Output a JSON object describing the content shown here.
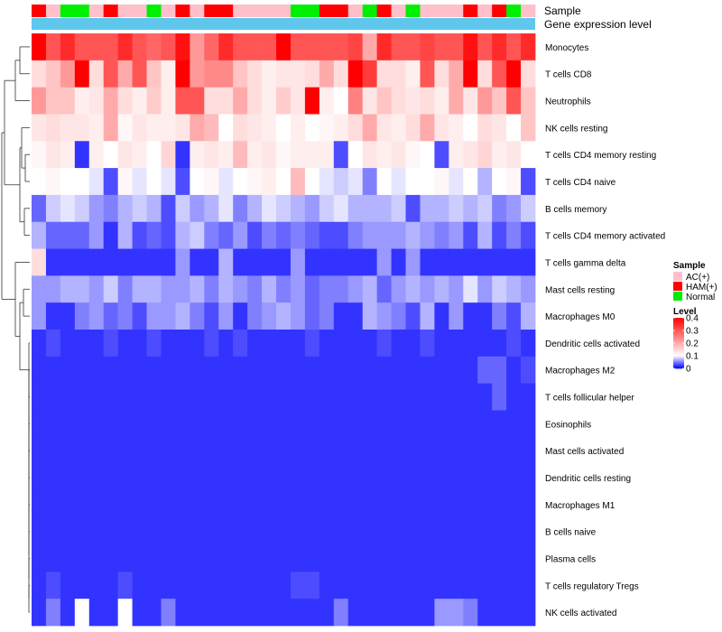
{
  "chart_data": {
    "type": "heatmap",
    "annotation_tracks": [
      "Sample",
      "Gene expression level"
    ],
    "sample_groups": [
      "AC(+)",
      "HAM(+)",
      "Normal"
    ],
    "sample_group_colors": {
      "AC(+)": "#ffc0cb",
      "HAM(+)": "#ff0000",
      "Normal": "#00ee00"
    },
    "sample_annotation": [
      "HAM(+)",
      "AC(+)",
      "Normal",
      "Normal",
      "AC(+)",
      "HAM(+)",
      "AC(+)",
      "AC(+)",
      "Normal",
      "AC(+)",
      "HAM(+)",
      "AC(+)",
      "HAM(+)",
      "HAM(+)",
      "AC(+)",
      "AC(+)",
      "AC(+)",
      "AC(+)",
      "Normal",
      "Normal",
      "HAM(+)",
      "HAM(+)",
      "AC(+)",
      "Normal",
      "HAM(+)",
      "AC(+)",
      "Normal",
      "AC(+)",
      "AC(+)",
      "AC(+)",
      "HAM(+)",
      "AC(+)",
      "HAM(+)",
      "Normal",
      "AC(+)"
    ],
    "gene_expression_level_color": "#5fc6ec",
    "rows": [
      "Monocytes",
      "T cells CD8",
      "Neutrophils",
      "NK cells resting",
      "T cells CD4 memory resting",
      "T cells CD4 naive",
      "B cells memory",
      "T cells CD4 memory activated",
      "T cells gamma delta",
      "Mast cells resting",
      "Macrophages M0",
      "Dendritic cells activated",
      "Macrophages M2",
      "T cells follicular helper",
      "Eosinophils",
      "Mast cells activated",
      "Dendritic cells resting",
      "Macrophages M1",
      "B cells naive",
      "Plasma cells",
      "T cells regulatory  Tregs",
      "NK cells activated"
    ],
    "values": [
      [
        0.4,
        0.3,
        0.35,
        0.3,
        0.3,
        0.3,
        0.35,
        0.3,
        0.28,
        0.3,
        0.38,
        0.22,
        0.28,
        0.35,
        0.3,
        0.3,
        0.3,
        0.4,
        0.3,
        0.3,
        0.3,
        0.3,
        0.32,
        0.2,
        0.35,
        0.3,
        0.3,
        0.32,
        0.3,
        0.3,
        0.38,
        0.3,
        0.35,
        0.3,
        0.35
      ],
      [
        0.14,
        0.17,
        0.22,
        0.4,
        0.14,
        0.3,
        0.2,
        0.3,
        0.17,
        0.12,
        0.4,
        0.22,
        0.24,
        0.24,
        0.17,
        0.14,
        0.12,
        0.13,
        0.13,
        0.14,
        0.2,
        0.14,
        0.4,
        0.33,
        0.14,
        0.14,
        0.12,
        0.3,
        0.14,
        0.2,
        0.4,
        0.14,
        0.3,
        0.4,
        0.14
      ],
      [
        0.22,
        0.17,
        0.17,
        0.12,
        0.13,
        0.2,
        0.14,
        0.12,
        0.16,
        0.12,
        0.3,
        0.3,
        0.14,
        0.14,
        0.2,
        0.14,
        0.12,
        0.16,
        0.13,
        0.4,
        0.12,
        0.1,
        0.25,
        0.13,
        0.17,
        0.14,
        0.13,
        0.14,
        0.12,
        0.2,
        0.13,
        0.22,
        0.17,
        0.3,
        0.17
      ],
      [
        0.13,
        0.14,
        0.13,
        0.13,
        0.12,
        0.2,
        0.11,
        0.13,
        0.12,
        0.12,
        0.13,
        0.2,
        0.18,
        0.1,
        0.14,
        0.13,
        0.12,
        0.1,
        0.12,
        0.1,
        0.11,
        0.12,
        0.14,
        0.2,
        0.13,
        0.12,
        0.14,
        0.2,
        0.13,
        0.12,
        0.1,
        0.14,
        0.13,
        0.1,
        0.17
      ],
      [
        0.11,
        0.13,
        0.12,
        0.02,
        0.12,
        0.1,
        0.13,
        0.12,
        0.1,
        0.15,
        0.02,
        0.12,
        0.13,
        0.12,
        0.18,
        0.12,
        0.13,
        0.11,
        0.12,
        0.12,
        0.12,
        0.03,
        0.1,
        0.13,
        0.12,
        0.13,
        0.11,
        0.1,
        0.03,
        0.12,
        0.13,
        0.15,
        0.12,
        0.13,
        0.1
      ],
      [
        0.1,
        0.11,
        0.1,
        0.1,
        0.09,
        0.03,
        0.11,
        0.09,
        0.1,
        0.09,
        0.03,
        0.1,
        0.11,
        0.09,
        0.1,
        0.11,
        0.12,
        0.1,
        0.18,
        0.1,
        0.09,
        0.08,
        0.09,
        0.05,
        0.1,
        0.09,
        0.1,
        0.1,
        0.11,
        0.09,
        0.1,
        0.07,
        0.1,
        0.11,
        0.03
      ],
      [
        0.04,
        0.08,
        0.09,
        0.08,
        0.06,
        0.05,
        0.07,
        0.08,
        0.07,
        0.03,
        0.08,
        0.06,
        0.07,
        0.09,
        0.05,
        0.07,
        0.09,
        0.08,
        0.07,
        0.06,
        0.08,
        0.09,
        0.07,
        0.07,
        0.07,
        0.08,
        0.03,
        0.07,
        0.07,
        0.08,
        0.07,
        0.08,
        0.05,
        0.06,
        0.08
      ],
      [
        0.07,
        0.04,
        0.04,
        0.04,
        0.06,
        0.02,
        0.07,
        0.03,
        0.04,
        0.03,
        0.07,
        0.08,
        0.05,
        0.04,
        0.06,
        0.03,
        0.05,
        0.04,
        0.05,
        0.04,
        0.03,
        0.03,
        0.05,
        0.06,
        0.06,
        0.06,
        0.07,
        0.06,
        0.05,
        0.06,
        0.03,
        0.07,
        0.03,
        0.05,
        0.03
      ],
      [
        0.14,
        0.02,
        0.02,
        0.02,
        0.02,
        0.02,
        0.02,
        0.02,
        0.02,
        0.02,
        0.06,
        0.02,
        0.02,
        0.07,
        0.02,
        0.02,
        0.02,
        0.02,
        0.06,
        0.02,
        0.02,
        0.02,
        0.02,
        0.02,
        0.06,
        0.02,
        0.06,
        0.02,
        0.02,
        0.02,
        0.02,
        0.02,
        0.02,
        0.02,
        0.02
      ],
      [
        0.06,
        0.06,
        0.07,
        0.07,
        0.06,
        0.08,
        0.05,
        0.07,
        0.07,
        0.06,
        0.06,
        0.07,
        0.05,
        0.07,
        0.06,
        0.05,
        0.07,
        0.05,
        0.06,
        0.04,
        0.05,
        0.05,
        0.06,
        0.07,
        0.04,
        0.06,
        0.07,
        0.06,
        0.07,
        0.06,
        0.09,
        0.06,
        0.08,
        0.07,
        0.06
      ],
      [
        0.06,
        0.02,
        0.02,
        0.05,
        0.06,
        0.04,
        0.05,
        0.03,
        0.06,
        0.06,
        0.07,
        0.05,
        0.03,
        0.06,
        0.02,
        0.05,
        0.06,
        0.07,
        0.06,
        0.04,
        0.05,
        0.02,
        0.02,
        0.07,
        0.06,
        0.05,
        0.03,
        0.07,
        0.02,
        0.06,
        0.02,
        0.02,
        0.05,
        0.03,
        0.07
      ],
      [
        0.02,
        0.03,
        0.02,
        0.02,
        0.02,
        0.03,
        0.02,
        0.02,
        0.03,
        0.02,
        0.02,
        0.02,
        0.03,
        0.02,
        0.03,
        0.02,
        0.02,
        0.02,
        0.02,
        0.03,
        0.02,
        0.02,
        0.02,
        0.02,
        0.03,
        0.02,
        0.02,
        0.03,
        0.02,
        0.02,
        0.02,
        0.02,
        0.02,
        0.03,
        0.02
      ],
      [
        0.02,
        0.02,
        0.02,
        0.02,
        0.02,
        0.02,
        0.02,
        0.02,
        0.02,
        0.02,
        0.02,
        0.02,
        0.02,
        0.02,
        0.02,
        0.02,
        0.02,
        0.02,
        0.02,
        0.02,
        0.02,
        0.02,
        0.02,
        0.02,
        0.02,
        0.02,
        0.02,
        0.02,
        0.02,
        0.02,
        0.02,
        0.04,
        0.04,
        0.02,
        0.03
      ],
      [
        0.02,
        0.02,
        0.02,
        0.02,
        0.02,
        0.02,
        0.02,
        0.02,
        0.02,
        0.02,
        0.02,
        0.02,
        0.02,
        0.02,
        0.02,
        0.02,
        0.02,
        0.02,
        0.02,
        0.02,
        0.02,
        0.02,
        0.02,
        0.02,
        0.02,
        0.02,
        0.02,
        0.02,
        0.02,
        0.02,
        0.02,
        0.02,
        0.04,
        0.02,
        0.02
      ],
      [
        0.02,
        0.02,
        0.02,
        0.02,
        0.02,
        0.02,
        0.02,
        0.02,
        0.02,
        0.02,
        0.02,
        0.02,
        0.02,
        0.02,
        0.02,
        0.02,
        0.02,
        0.02,
        0.02,
        0.02,
        0.02,
        0.02,
        0.02,
        0.02,
        0.02,
        0.02,
        0.02,
        0.02,
        0.02,
        0.02,
        0.02,
        0.02,
        0.02,
        0.02,
        0.02
      ],
      [
        0.02,
        0.02,
        0.02,
        0.02,
        0.02,
        0.02,
        0.02,
        0.02,
        0.02,
        0.02,
        0.02,
        0.02,
        0.02,
        0.02,
        0.02,
        0.02,
        0.02,
        0.02,
        0.02,
        0.02,
        0.02,
        0.02,
        0.02,
        0.02,
        0.02,
        0.02,
        0.02,
        0.02,
        0.02,
        0.02,
        0.02,
        0.02,
        0.02,
        0.02,
        0.02
      ],
      [
        0.02,
        0.02,
        0.02,
        0.02,
        0.02,
        0.02,
        0.02,
        0.02,
        0.02,
        0.02,
        0.02,
        0.02,
        0.02,
        0.02,
        0.02,
        0.02,
        0.02,
        0.02,
        0.02,
        0.02,
        0.02,
        0.02,
        0.02,
        0.02,
        0.02,
        0.02,
        0.02,
        0.02,
        0.02,
        0.02,
        0.02,
        0.02,
        0.02,
        0.02,
        0.02
      ],
      [
        0.02,
        0.02,
        0.02,
        0.02,
        0.02,
        0.02,
        0.02,
        0.02,
        0.02,
        0.02,
        0.02,
        0.02,
        0.02,
        0.02,
        0.02,
        0.02,
        0.02,
        0.02,
        0.02,
        0.02,
        0.02,
        0.02,
        0.02,
        0.02,
        0.02,
        0.02,
        0.02,
        0.02,
        0.02,
        0.02,
        0.02,
        0.02,
        0.02,
        0.02,
        0.02
      ],
      [
        0.02,
        0.02,
        0.02,
        0.02,
        0.02,
        0.02,
        0.02,
        0.02,
        0.02,
        0.02,
        0.02,
        0.02,
        0.02,
        0.02,
        0.02,
        0.02,
        0.02,
        0.02,
        0.02,
        0.02,
        0.02,
        0.02,
        0.02,
        0.02,
        0.02,
        0.02,
        0.02,
        0.02,
        0.02,
        0.02,
        0.02,
        0.02,
        0.02,
        0.02,
        0.02
      ],
      [
        0.02,
        0.02,
        0.02,
        0.02,
        0.02,
        0.02,
        0.02,
        0.02,
        0.02,
        0.02,
        0.02,
        0.02,
        0.02,
        0.02,
        0.02,
        0.02,
        0.02,
        0.02,
        0.02,
        0.02,
        0.02,
        0.02,
        0.02,
        0.02,
        0.02,
        0.02,
        0.02,
        0.02,
        0.02,
        0.02,
        0.02,
        0.02,
        0.02,
        0.02,
        0.02
      ],
      [
        0.02,
        0.03,
        0.02,
        0.02,
        0.02,
        0.02,
        0.03,
        0.02,
        0.02,
        0.02,
        0.02,
        0.02,
        0.02,
        0.02,
        0.02,
        0.02,
        0.02,
        0.02,
        0.03,
        0.03,
        0.02,
        0.02,
        0.02,
        0.02,
        0.02,
        0.02,
        0.02,
        0.02,
        0.02,
        0.02,
        0.02,
        0.02,
        0.02,
        0.02,
        0.02
      ],
      [
        0.02,
        0.05,
        0.02,
        0.1,
        0.02,
        0.02,
        0.1,
        0.02,
        0.02,
        0.05,
        0.02,
        0.02,
        0.02,
        0.02,
        0.02,
        0.02,
        0.02,
        0.02,
        0.02,
        0.02,
        0.02,
        0.05,
        0.02,
        0.02,
        0.02,
        0.02,
        0.02,
        0.02,
        0.06,
        0.06,
        0.05,
        0.02,
        0.02,
        0.02,
        0.02
      ]
    ],
    "color_scale": {
      "min": 0,
      "mid": 0.1,
      "max": 0.4,
      "low_color": "#0000ff",
      "mid_color": "#ffffff",
      "high_color": "#ff0000"
    },
    "legend": {
      "sample_title": "Sample",
      "level_title": "Level",
      "level_ticks": [
        0.4,
        0.3,
        0.2,
        0.1,
        0
      ],
      "level_tick_labels": [
        "0.4",
        "0.3",
        "0.2",
        "0.1",
        "0"
      ],
      "placement": "right"
    },
    "row_dendrogram": true
  }
}
